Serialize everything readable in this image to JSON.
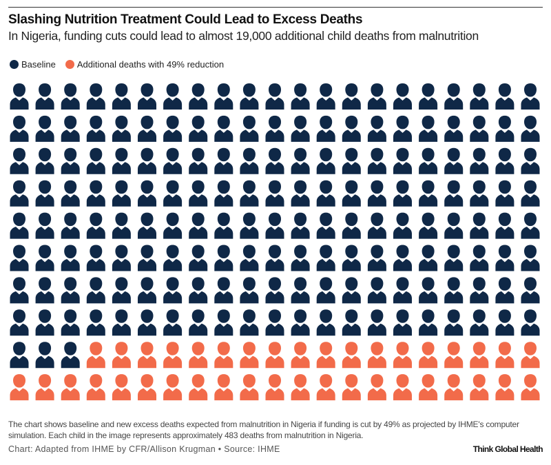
{
  "title": "Slashing Nutrition Treatment Could Lead to Excess Deaths",
  "subtitle": "In Nigeria, funding cuts could lead to almost 19,000 additional child deaths from malnutrition",
  "note": "The chart shows baseline and new excess deaths expected from malnutrition in Nigeria if funding is cut by 49% as projected by IHME's computer simulation. Each child in the image represents approximately 483 deaths from malnutrition in Nigeria.",
  "credit": "Chart: Adapted from IHME by CFR/Allison Krugman • Source: IHME",
  "brand": "Think Global Health",
  "chart_data": {
    "type": "icon-array",
    "columns": 21,
    "rows": 10,
    "deaths_per_icon": 483,
    "series": [
      {
        "name": "Baseline",
        "icons": 171,
        "color": "#0f2847"
      },
      {
        "name": "Additional deaths with 49% reduction",
        "icons": 39,
        "color": "#f26b4a"
      }
    ],
    "legend_placement": "top-left"
  }
}
